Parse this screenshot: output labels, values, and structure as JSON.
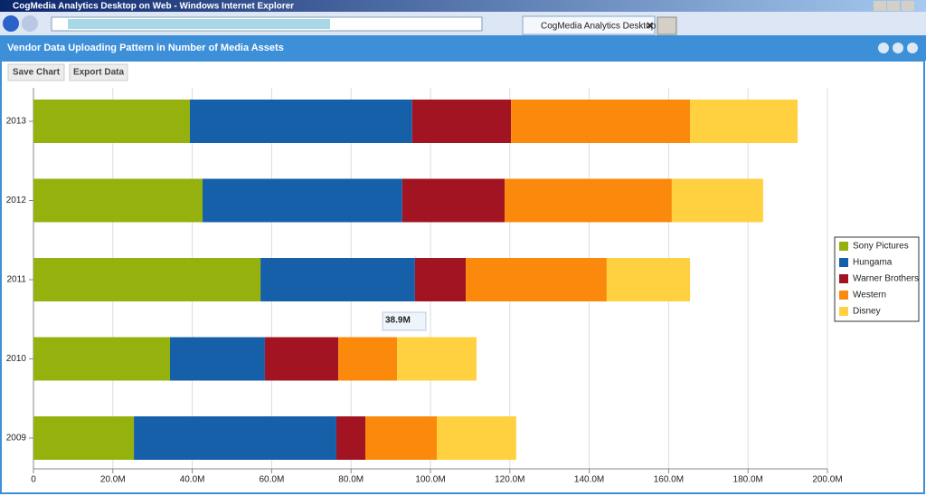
{
  "window": {
    "title": "CogMedia Analytics Desktop on Web - Windows Internet Explorer",
    "tab": "CogMedia Analytics Desktop ..."
  },
  "panel": {
    "title": "Vendor Data Uploading Pattern in Number of Media Assets",
    "buttons": [
      "Save Chart",
      "Export Data"
    ]
  },
  "tooltip": "38.9M",
  "chart_data": {
    "type": "stacked-bar-horizontal",
    "categories": [
      "2013",
      "2012",
      "2011",
      "2010",
      "2009"
    ],
    "series": [
      {
        "name": "Sony Pictures",
        "color": "#95b10e",
        "values": [
          39.4,
          42.6,
          57.2,
          34.4,
          25.3
        ]
      },
      {
        "name": "Hungama",
        "color": "#1560a8",
        "values": [
          56.0,
          50.3,
          38.9,
          23.9,
          51.0
        ]
      },
      {
        "name": "Warner Brothers",
        "color": "#a31423",
        "values": [
          24.9,
          25.8,
          12.8,
          18.5,
          7.3
        ]
      },
      {
        "name": "Western",
        "color": "#fb8a0c",
        "values": [
          45.1,
          42.1,
          35.5,
          14.8,
          18.0
        ]
      },
      {
        "name": "Disney",
        "color": "#ffd03f",
        "values": [
          27.1,
          23.0,
          21.0,
          20.0,
          20.0
        ]
      }
    ],
    "xlim": [
      0,
      200
    ],
    "xticks": [
      0,
      {
        "value": 20,
        "label": "20.0M"
      },
      {
        "value": 40,
        "label": "40.0M"
      },
      {
        "value": 60,
        "label": "60.0M"
      },
      {
        "value": 80,
        "label": "80.0M"
      },
      {
        "value": 100,
        "label": "100.0M"
      },
      {
        "value": 120,
        "label": "120.0M"
      },
      {
        "value": 140,
        "label": "140.0M"
      },
      {
        "value": 160,
        "label": "160.0M"
      },
      {
        "value": 180,
        "label": "180.0M"
      },
      {
        "value": 200,
        "label": "200.0M"
      }
    ],
    "grid": true,
    "legend": "right"
  }
}
